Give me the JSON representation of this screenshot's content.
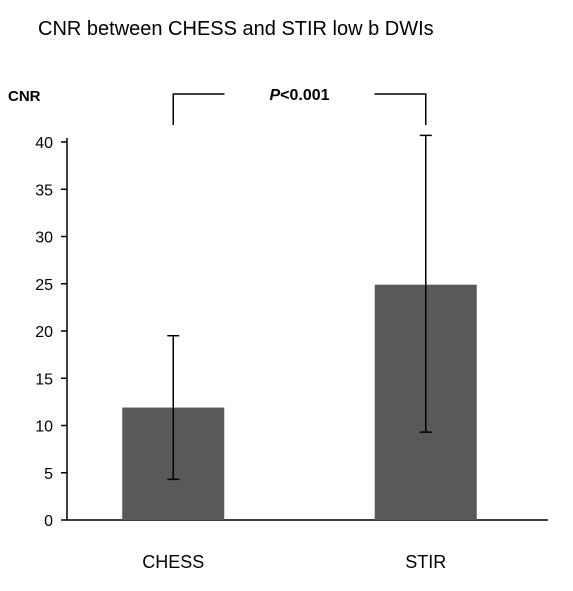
{
  "chart_data": {
    "type": "bar",
    "title": "CNR between CHESS and STIR low b DWIs",
    "ylabel": "CNR",
    "xlabel": "",
    "categories": [
      "CHESS",
      "STIR"
    ],
    "values": [
      11.9,
      24.9
    ],
    "error_low": [
      4.3,
      9.3
    ],
    "error_high": [
      19.5,
      40.7
    ],
    "ylim": [
      0,
      40
    ],
    "yticks": [
      0,
      5,
      10,
      15,
      20,
      25,
      30,
      35,
      40
    ],
    "bar_color": "#595959",
    "grid": false,
    "annotation": {
      "italic": "P",
      "text": "<0.001"
    }
  }
}
